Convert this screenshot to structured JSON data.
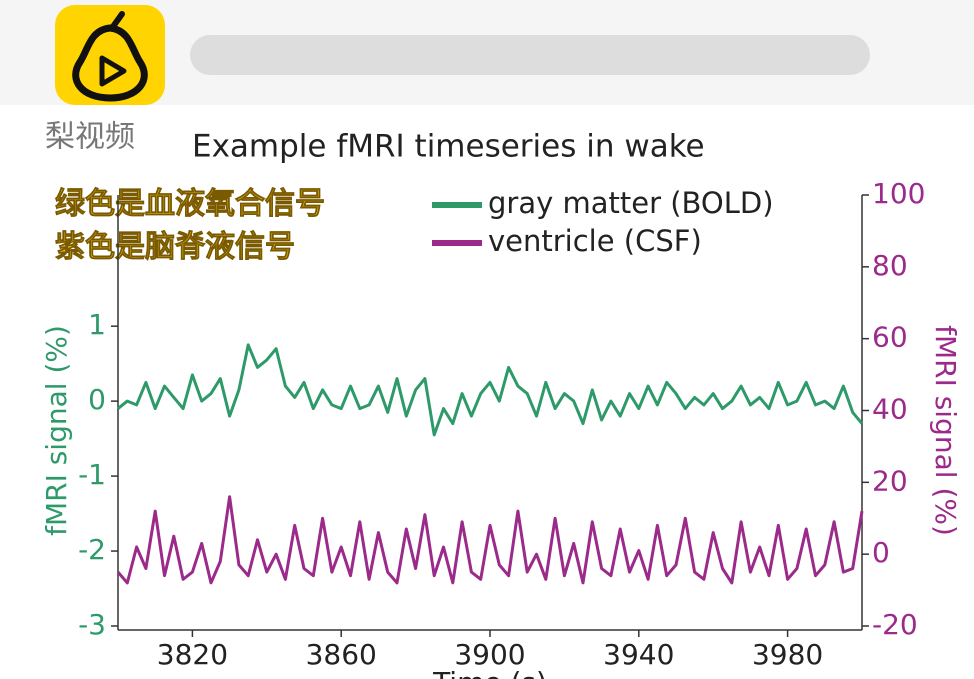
{
  "watermark": "梨视频",
  "overlay": [
    "绿色是血液氧合信号",
    "紫色是脑脊液信号"
  ],
  "chart_data": {
    "type": "line",
    "title": "Example fMRI timeseries in wake",
    "xlabel": "Time (s)",
    "ylabel": "fMRI signal (%)",
    "y2label": "fMRI signal (%)",
    "xlim": [
      3800,
      4000
    ],
    "xticks": [
      3820,
      3860,
      3900,
      3940,
      3980
    ],
    "ylim": [
      -3,
      2.75
    ],
    "yticks": [
      -3,
      -2,
      -1,
      0,
      1
    ],
    "y2lim": [
      -20,
      100
    ],
    "y2ticks": [
      -20,
      0,
      20,
      40,
      60,
      80,
      100
    ],
    "x": [
      3800,
      3802.5,
      3805,
      3807.5,
      3810,
      3812.5,
      3815,
      3817.5,
      3820,
      3822.5,
      3825,
      3827.5,
      3830,
      3832.5,
      3835,
      3837.5,
      3840,
      3842.5,
      3845,
      3847.5,
      3850,
      3852.5,
      3855,
      3857.5,
      3860,
      3862.5,
      3865,
      3867.5,
      3870,
      3872.5,
      3875,
      3877.5,
      3880,
      3882.5,
      3885,
      3887.5,
      3890,
      3892.5,
      3895,
      3897.5,
      3900,
      3902.5,
      3905,
      3907.5,
      3910,
      3912.5,
      3915,
      3917.5,
      3920,
      3922.5,
      3925,
      3927.5,
      3930,
      3932.5,
      3935,
      3937.5,
      3940,
      3942.5,
      3945,
      3947.5,
      3950,
      3952.5,
      3955,
      3957.5,
      3960,
      3962.5,
      3965,
      3967.5,
      3970,
      3972.5,
      3975,
      3977.5,
      3980,
      3982.5,
      3985,
      3987.5,
      3990,
      3992.5,
      3995,
      3997.5,
      4000
    ],
    "series": [
      {
        "name": "gray matter (BOLD)",
        "color": "#2e9a6a",
        "axis": "y",
        "values": [
          -0.1,
          0,
          -0.05,
          0.25,
          -0.1,
          0.2,
          0.05,
          -0.1,
          0.35,
          0,
          0.1,
          0.3,
          -0.2,
          0.15,
          0.75,
          0.45,
          0.55,
          0.7,
          0.2,
          0.05,
          0.25,
          -0.1,
          0.15,
          -0.05,
          -0.1,
          0.2,
          -0.1,
          -0.05,
          0.2,
          -0.15,
          0.3,
          -0.2,
          0.15,
          0.3,
          -0.45,
          -0.1,
          -0.3,
          0.1,
          -0.2,
          0.1,
          0.25,
          0,
          0.45,
          0.2,
          0.1,
          -0.2,
          0.25,
          -0.1,
          0.1,
          0,
          -0.3,
          0.15,
          -0.25,
          0,
          -0.2,
          0.1,
          -0.1,
          0.2,
          -0.05,
          0.25,
          0.1,
          -0.1,
          0.05,
          -0.05,
          0.1,
          -0.1,
          0,
          0.2,
          -0.05,
          0.05,
          -0.1,
          0.25,
          -0.05,
          0,
          0.25,
          -0.05,
          0,
          -0.1,
          0.2,
          -0.15,
          -0.3
        ]
      },
      {
        "name": "ventricle (CSF)",
        "color": "#9b2a8a",
        "axis": "y2",
        "values": [
          -5,
          -8,
          2,
          -4,
          12,
          -6,
          5,
          -7,
          -5,
          3,
          -8,
          -2,
          16,
          -3,
          -6,
          4,
          -5,
          0,
          -7,
          8,
          -4,
          -6,
          10,
          -5,
          2,
          -6,
          9,
          -7,
          6,
          -5,
          -8,
          7,
          -4,
          11,
          -6,
          2,
          -8,
          9,
          -5,
          -7,
          8,
          -3,
          -6,
          12,
          -5,
          0,
          -7,
          10,
          -6,
          3,
          -8,
          9,
          -4,
          -6,
          7,
          -5,
          1,
          -7,
          8,
          -6,
          -3,
          10,
          -5,
          -7,
          6,
          -4,
          -8,
          9,
          -5,
          2,
          -6,
          8,
          -7,
          -4,
          7,
          -6,
          -3,
          9,
          -5,
          -4,
          12
        ]
      }
    ]
  }
}
